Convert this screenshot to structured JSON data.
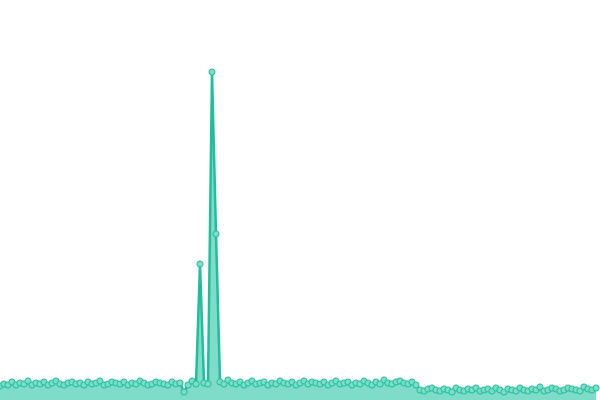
{
  "chart_data": {
    "type": "area",
    "x": [
      0,
      1,
      2,
      3,
      4,
      5,
      6,
      7,
      8,
      9,
      10,
      11,
      12,
      13,
      14,
      15,
      16,
      17,
      18,
      19,
      20,
      21,
      22,
      23,
      24,
      25,
      26,
      27,
      28,
      29,
      30,
      31,
      32,
      33,
      34,
      35,
      36,
      37,
      38,
      39,
      40,
      41,
      42,
      43,
      44,
      45,
      46,
      47,
      48,
      49,
      50,
      51,
      52,
      53,
      54,
      55,
      56,
      57,
      58,
      59,
      60,
      61,
      62,
      63,
      64,
      65,
      66,
      67,
      68,
      69,
      70,
      71,
      72,
      73,
      74,
      75,
      76,
      77,
      78,
      79,
      80,
      81,
      82,
      83,
      84,
      85,
      86,
      87,
      88,
      89,
      90,
      91,
      92,
      93,
      94,
      95,
      96,
      97,
      98,
      99,
      100,
      101,
      102,
      103,
      104,
      105,
      106,
      107,
      108,
      109,
      110,
      111,
      112,
      113,
      114,
      115,
      116,
      117,
      118,
      119,
      120,
      121,
      122,
      123,
      124,
      125,
      126,
      127,
      128,
      129,
      130,
      131,
      132,
      133,
      134,
      135,
      136,
      137,
      138,
      139,
      140,
      141,
      142,
      143,
      144,
      145,
      146,
      147,
      148,
      149
    ],
    "series": [
      {
        "color": "#1fbf9c",
        "fill": "#7fdcc8",
        "values": [
          14,
          16,
          15,
          18,
          15,
          17,
          16,
          19,
          15,
          17,
          16,
          18,
          15,
          17,
          19,
          16,
          15,
          17,
          18,
          16,
          17,
          15,
          18,
          16,
          17,
          19,
          15,
          16,
          18,
          17,
          16,
          18,
          15,
          17,
          16,
          19,
          17,
          15,
          16,
          18,
          17,
          16,
          15,
          18,
          16,
          17,
          8,
          15,
          19,
          16,
          136,
          17,
          16,
          328,
          166,
          18,
          16,
          20,
          17,
          16,
          18,
          15,
          17,
          19,
          16,
          17,
          18,
          15,
          17,
          16,
          19,
          17,
          16,
          18,
          15,
          17,
          19,
          16,
          18,
          17,
          16,
          18,
          15,
          17,
          19,
          16,
          17,
          18,
          15,
          17,
          16,
          19,
          17,
          15,
          18,
          16,
          20,
          17,
          16,
          18,
          19,
          17,
          16,
          18,
          15,
          10,
          9,
          11,
          12,
          10,
          9,
          11,
          10,
          8,
          12,
          10,
          9,
          11,
          10,
          12,
          9,
          10,
          11,
          9,
          12,
          10,
          8,
          11,
          10,
          9,
          12,
          10,
          9,
          11,
          10,
          13,
          9,
          10,
          12,
          11,
          9,
          10,
          12,
          11,
          10,
          9,
          13,
          11,
          10,
          12
        ]
      }
    ],
    "xlim": [
      0,
      150
    ],
    "ylim": [
      0,
      400
    ]
  }
}
